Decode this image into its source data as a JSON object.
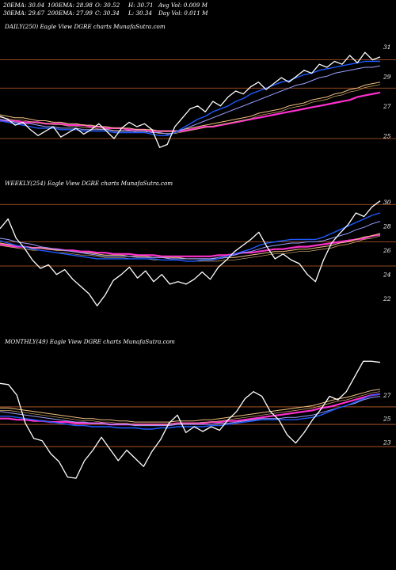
{
  "header": {
    "row1": [
      "20EMA: 30.04",
      "100EMA: 28.98",
      "O: 30.52",
      "H: 30.71",
      "Avg Vol: 0.009 M"
    ],
    "row2": [
      "30EMA: 29.67",
      "200EMA: 27.99",
      "C: 30.34",
      "L: 30.34",
      "Day Vol: 0.011 M"
    ]
  },
  "colors": {
    "background": "#000000",
    "price": "#ffffff",
    "ema20": "#1e5bff",
    "ema30": "#9aa0ff",
    "ema100": "#f0c080",
    "ema200": "#ff30d0",
    "level_line": "#c0602a"
  },
  "chart_data": [
    {
      "type": "line",
      "title": "DAILY(250) Eagle  View  DGRE charts MunafaSutra.com",
      "ylim": [
        24,
        32
      ],
      "yticks": [
        "31",
        "29",
        "27",
        "25"
      ],
      "level_lines": [
        30.1,
        28.2,
        24.8
      ],
      "series": [
        {
          "key": "price",
          "values": [
            26.3,
            26.1,
            25.7,
            25.9,
            25.4,
            25.0,
            25.3,
            25.6,
            24.9,
            25.2,
            25.5,
            25.1,
            25.4,
            25.8,
            25.3,
            24.8,
            25.5,
            25.9,
            25.6,
            25.8,
            25.4,
            24.2,
            24.4,
            25.6,
            26.2,
            26.8,
            27.0,
            26.6,
            27.3,
            27.0,
            27.6,
            28.0,
            27.8,
            28.3,
            28.6,
            28.1,
            28.5,
            28.9,
            28.6,
            29.0,
            29.4,
            29.2,
            29.8,
            29.6,
            30.0,
            29.8,
            30.4,
            29.9,
            30.6,
            30.1,
            30.3
          ]
        },
        {
          "key": "ema20",
          "values": [
            26.0,
            25.9,
            25.8,
            25.7,
            25.6,
            25.5,
            25.5,
            25.5,
            25.4,
            25.4,
            25.4,
            25.3,
            25.3,
            25.3,
            25.3,
            25.2,
            25.2,
            25.2,
            25.2,
            25.2,
            25.1,
            25.0,
            25.0,
            25.2,
            25.5,
            25.8,
            26.1,
            26.3,
            26.6,
            26.8,
            27.0,
            27.3,
            27.5,
            27.8,
            28.0,
            28.2,
            28.4,
            28.6,
            28.7,
            28.9,
            29.1,
            29.2,
            29.4,
            29.5,
            29.6,
            29.7,
            29.8,
            29.9,
            30.0,
            30.0,
            30.0
          ]
        },
        {
          "key": "ema30",
          "values": [
            26.1,
            26.0,
            25.9,
            25.8,
            25.8,
            25.7,
            25.6,
            25.6,
            25.5,
            25.5,
            25.5,
            25.4,
            25.4,
            25.4,
            25.4,
            25.3,
            25.3,
            25.3,
            25.3,
            25.3,
            25.2,
            25.2,
            25.1,
            25.2,
            25.4,
            25.6,
            25.8,
            26.0,
            26.2,
            26.4,
            26.6,
            26.8,
            27.0,
            27.2,
            27.4,
            27.6,
            27.8,
            28.0,
            28.2,
            28.4,
            28.5,
            28.7,
            28.9,
            29.0,
            29.2,
            29.3,
            29.4,
            29.5,
            29.6,
            29.6,
            29.7
          ]
        },
        {
          "key": "ema100",
          "values": [
            26.4,
            26.3,
            26.2,
            26.2,
            26.1,
            26.0,
            26.0,
            25.9,
            25.9,
            25.8,
            25.8,
            25.7,
            25.7,
            25.6,
            25.6,
            25.5,
            25.5,
            25.5,
            25.4,
            25.4,
            25.4,
            25.3,
            25.3,
            25.3,
            25.4,
            25.5,
            25.6,
            25.7,
            25.8,
            25.9,
            26.0,
            26.1,
            26.2,
            26.3,
            26.5,
            26.6,
            26.7,
            26.8,
            27.0,
            27.1,
            27.2,
            27.4,
            27.5,
            27.6,
            27.8,
            27.9,
            28.1,
            28.2,
            28.4,
            28.5,
            28.6
          ]
        },
        {
          "key": "ema200",
          "values": [
            26.0,
            26.0,
            26.0,
            25.9,
            25.9,
            25.9,
            25.8,
            25.8,
            25.8,
            25.7,
            25.7,
            25.7,
            25.6,
            25.6,
            25.5,
            25.5,
            25.5,
            25.4,
            25.4,
            25.4,
            25.3,
            25.3,
            25.3,
            25.3,
            25.3,
            25.4,
            25.5,
            25.6,
            25.6,
            25.7,
            25.8,
            25.9,
            26.0,
            26.1,
            26.2,
            26.3,
            26.4,
            26.5,
            26.6,
            26.7,
            26.8,
            26.9,
            27.0,
            27.1,
            27.2,
            27.3,
            27.4,
            27.6,
            27.7,
            27.8,
            27.9
          ]
        }
      ]
    },
    {
      "type": "line",
      "title": "WEEKLY(254) Eagle  View  DGRE charts MunafaSutra.com",
      "ylim": [
        20.5,
        31
      ],
      "yticks": [
        "30",
        "28",
        "26",
        "24",
        "22"
      ],
      "level_lines": [
        29.8,
        26.7,
        24.7
      ],
      "series": [
        {
          "key": "price",
          "values": [
            27.8,
            28.6,
            27.0,
            26.2,
            25.2,
            24.5,
            24.8,
            24.0,
            24.4,
            23.6,
            23.0,
            22.4,
            21.4,
            22.3,
            23.5,
            24.0,
            24.6,
            23.7,
            24.3,
            23.4,
            24.0,
            23.2,
            23.4,
            23.2,
            23.6,
            24.2,
            23.6,
            24.6,
            25.2,
            25.9,
            26.4,
            26.9,
            27.5,
            26.3,
            25.3,
            25.7,
            25.2,
            24.9,
            24.0,
            23.4,
            25.2,
            26.6,
            27.4,
            28.1,
            29.1,
            28.8,
            29.6,
            30.1
          ]
        },
        {
          "key": "ema20",
          "values": [
            26.8,
            26.6,
            26.4,
            26.3,
            26.1,
            26.0,
            25.9,
            25.8,
            25.7,
            25.6,
            25.5,
            25.4,
            25.3,
            25.3,
            25.3,
            25.3,
            25.3,
            25.3,
            25.3,
            25.3,
            25.2,
            25.2,
            25.2,
            25.1,
            25.1,
            25.2,
            25.2,
            25.3,
            25.5,
            25.7,
            25.9,
            26.1,
            26.4,
            26.6,
            26.7,
            26.8,
            26.9,
            26.9,
            26.9,
            26.9,
            27.1,
            27.4,
            27.7,
            28.0,
            28.3,
            28.6,
            28.9,
            29.1
          ]
        },
        {
          "key": "ema30",
          "values": [
            27.0,
            26.9,
            26.7,
            26.6,
            26.5,
            26.3,
            26.2,
            26.1,
            26.0,
            25.9,
            25.8,
            25.7,
            25.6,
            25.5,
            25.5,
            25.5,
            25.5,
            25.4,
            25.4,
            25.4,
            25.4,
            25.3,
            25.3,
            25.3,
            25.3,
            25.3,
            25.3,
            25.4,
            25.5,
            25.6,
            25.8,
            25.9,
            26.1,
            26.3,
            26.4,
            26.5,
            26.6,
            26.6,
            26.7,
            26.7,
            26.8,
            27.0,
            27.2,
            27.4,
            27.7,
            27.9,
            28.2,
            28.4
          ]
        },
        {
          "key": "ema100",
          "values": [
            26.6,
            26.5,
            26.4,
            26.3,
            26.2,
            26.2,
            26.1,
            26.0,
            26.0,
            25.9,
            25.8,
            25.8,
            25.7,
            25.6,
            25.6,
            25.6,
            25.5,
            25.5,
            25.5,
            25.4,
            25.4,
            25.4,
            25.4,
            25.3,
            25.3,
            25.3,
            25.3,
            25.3,
            25.4,
            25.4,
            25.5,
            25.6,
            25.7,
            25.8,
            25.9,
            25.9,
            26.0,
            26.1,
            26.1,
            26.2,
            26.3,
            26.4,
            26.6,
            26.7,
            26.9,
            27.1,
            27.2,
            27.4
          ]
        },
        {
          "key": "ema200",
          "values": [
            26.5,
            26.4,
            26.3,
            26.3,
            26.2,
            26.2,
            26.1,
            26.1,
            26.0,
            26.0,
            25.9,
            25.9,
            25.8,
            25.8,
            25.7,
            25.7,
            25.7,
            25.6,
            25.6,
            25.6,
            25.5,
            25.5,
            25.5,
            25.5,
            25.5,
            25.5,
            25.5,
            25.6,
            25.6,
            25.7,
            25.8,
            25.8,
            25.9,
            26.0,
            26.1,
            26.1,
            26.2,
            26.3,
            26.3,
            26.4,
            26.5,
            26.6,
            26.7,
            26.8,
            26.9,
            27.0,
            27.2,
            27.3
          ]
        }
      ]
    },
    {
      "type": "line",
      "title": "MONTHLY(49) Eagle  View  DGRE charts MunafaSutra.com",
      "ylim": [
        19.5,
        31
      ],
      "yticks": [
        "27",
        "25",
        "23"
      ],
      "level_lines": [
        26.0,
        24.5,
        22.6
      ],
      "series": [
        {
          "key": "price",
          "values": [
            28.0,
            27.9,
            27.0,
            24.6,
            23.3,
            23.1,
            22.0,
            21.3,
            20.0,
            19.9,
            21.4,
            22.3,
            23.4,
            22.4,
            21.4,
            22.3,
            21.6,
            20.9,
            22.2,
            23.2,
            24.6,
            25.3,
            23.8,
            24.3,
            23.9,
            24.3,
            24.0,
            24.9,
            25.6,
            26.7,
            27.3,
            26.9,
            25.6,
            24.9,
            23.6,
            22.9,
            23.8,
            24.9,
            25.8,
            26.9,
            26.6,
            27.3,
            28.6,
            29.9,
            29.9,
            29.8
          ]
        },
        {
          "key": "ema20",
          "values": [
            25.2,
            25.2,
            25.1,
            25.0,
            24.9,
            24.8,
            24.7,
            24.6,
            24.5,
            24.4,
            24.4,
            24.3,
            24.3,
            24.3,
            24.2,
            24.2,
            24.2,
            24.1,
            24.1,
            24.2,
            24.2,
            24.3,
            24.3,
            24.3,
            24.3,
            24.4,
            24.4,
            24.5,
            24.6,
            24.7,
            24.8,
            24.9,
            24.9,
            24.9,
            24.9,
            24.9,
            25.0,
            25.1,
            25.3,
            25.6,
            25.9,
            26.1,
            26.4,
            26.7,
            27.0,
            27.1
          ]
        },
        {
          "key": "ema30",
          "values": [
            25.6,
            25.5,
            25.4,
            25.3,
            25.2,
            25.1,
            25.0,
            24.9,
            24.8,
            24.7,
            24.7,
            24.6,
            24.6,
            24.5,
            24.5,
            24.5,
            24.4,
            24.4,
            24.4,
            24.4,
            24.4,
            24.5,
            24.5,
            24.5,
            24.5,
            24.5,
            24.6,
            24.6,
            24.7,
            24.8,
            24.9,
            25.0,
            25.0,
            25.0,
            25.1,
            25.1,
            25.2,
            25.3,
            25.5,
            25.7,
            25.9,
            26.1,
            26.3,
            26.6,
            26.8,
            26.9
          ]
        },
        {
          "key": "ema100",
          "values": [
            25.9,
            25.9,
            25.8,
            25.7,
            25.6,
            25.5,
            25.4,
            25.3,
            25.2,
            25.1,
            25.0,
            25.0,
            24.9,
            24.9,
            24.8,
            24.8,
            24.7,
            24.7,
            24.7,
            24.7,
            24.7,
            24.8,
            24.8,
            24.8,
            24.9,
            24.9,
            25.0,
            25.1,
            25.2,
            25.3,
            25.4,
            25.5,
            25.6,
            25.7,
            25.8,
            25.9,
            26.0,
            26.1,
            26.3,
            26.5,
            26.7,
            26.8,
            27.0,
            27.2,
            27.4,
            27.5
          ]
        },
        {
          "key": "ema200",
          "values": [
            25.0,
            25.0,
            24.9,
            24.9,
            24.8,
            24.8,
            24.7,
            24.7,
            24.7,
            24.6,
            24.6,
            24.6,
            24.6,
            24.5,
            24.5,
            24.5,
            24.5,
            24.5,
            24.5,
            24.5,
            24.5,
            24.6,
            24.6,
            24.6,
            24.6,
            24.7,
            24.7,
            24.8,
            24.8,
            24.9,
            25.0,
            25.1,
            25.2,
            25.3,
            25.4,
            25.5,
            25.6,
            25.7,
            25.9,
            26.0,
            26.2,
            26.4,
            26.6,
            26.8,
            27.0,
            27.1
          ]
        }
      ]
    }
  ]
}
